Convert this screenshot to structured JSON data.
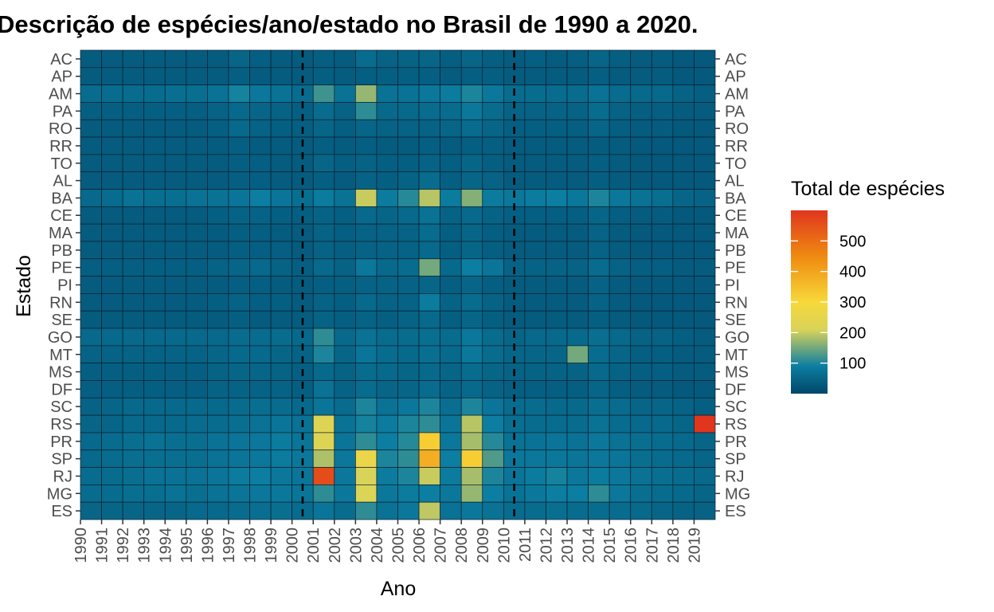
{
  "chart_data": {
    "type": "heatmap",
    "title": "Descrição de espécies/ano/estado no Brasil de 1990 a 2020.",
    "xlabel": "Ano",
    "ylabel": "Estado",
    "x": [
      "1990",
      "1991",
      "1992",
      "1993",
      "1994",
      "1995",
      "1996",
      "1997",
      "1998",
      "1999",
      "2000",
      "2001",
      "2002",
      "2003",
      "2004",
      "2005",
      "2006",
      "2007",
      "2008",
      "2009",
      "2010",
      "2011",
      "2012",
      "2013",
      "2014",
      "2015",
      "2016",
      "2017",
      "2018",
      "2019"
    ],
    "y": [
      "AC",
      "AP",
      "AM",
      "PA",
      "RO",
      "RR",
      "TO",
      "AL",
      "BA",
      "CE",
      "MA",
      "PB",
      "PE",
      "PI",
      "RN",
      "SE",
      "GO",
      "MT",
      "MS",
      "DF",
      "SC",
      "RS",
      "PR",
      "SP",
      "RJ",
      "MG",
      "ES"
    ],
    "values": [
      [
        35,
        35,
        35,
        35,
        35,
        35,
        35,
        50,
        40,
        35,
        35,
        40,
        35,
        60,
        45,
        45,
        50,
        40,
        50,
        40,
        35,
        40,
        35,
        40,
        50,
        40,
        35,
        35,
        30,
        30
      ],
      [
        35,
        35,
        35,
        35,
        35,
        35,
        35,
        40,
        35,
        35,
        35,
        40,
        35,
        40,
        40,
        40,
        40,
        35,
        40,
        40,
        35,
        35,
        35,
        35,
        40,
        35,
        35,
        35,
        30,
        30
      ],
      [
        60,
        60,
        60,
        60,
        65,
        65,
        70,
        95,
        80,
        70,
        60,
        120,
        70,
        170,
        70,
        70,
        80,
        85,
        100,
        80,
        60,
        60,
        60,
        60,
        70,
        60,
        55,
        55,
        45,
        40
      ],
      [
        40,
        40,
        40,
        40,
        40,
        40,
        45,
        55,
        50,
        45,
        40,
        60,
        45,
        110,
        55,
        55,
        60,
        60,
        80,
        60,
        45,
        45,
        45,
        45,
        60,
        45,
        40,
        40,
        35,
        35
      ],
      [
        35,
        35,
        35,
        35,
        35,
        35,
        40,
        55,
        45,
        40,
        40,
        50,
        40,
        50,
        45,
        45,
        45,
        50,
        60,
        50,
        40,
        40,
        40,
        40,
        50,
        40,
        35,
        35,
        30,
        30
      ],
      [
        35,
        35,
        35,
        35,
        35,
        35,
        35,
        40,
        35,
        35,
        35,
        40,
        35,
        40,
        35,
        35,
        40,
        35,
        40,
        40,
        35,
        35,
        35,
        35,
        35,
        35,
        30,
        30,
        30,
        30
      ],
      [
        35,
        35,
        35,
        35,
        35,
        35,
        35,
        40,
        40,
        35,
        35,
        50,
        40,
        45,
        40,
        40,
        45,
        40,
        50,
        40,
        35,
        35,
        35,
        35,
        40,
        35,
        30,
        30,
        30,
        30
      ],
      [
        35,
        35,
        35,
        35,
        35,
        35,
        35,
        40,
        40,
        35,
        35,
        40,
        35,
        45,
        40,
        45,
        60,
        40,
        50,
        45,
        35,
        35,
        35,
        35,
        40,
        35,
        30,
        30,
        30,
        30
      ],
      [
        55,
        60,
        70,
        65,
        65,
        70,
        70,
        75,
        90,
        75,
        65,
        85,
        70,
        200,
        85,
        105,
        190,
        85,
        160,
        85,
        80,
        85,
        90,
        80,
        100,
        80,
        70,
        65,
        50,
        45
      ],
      [
        35,
        35,
        35,
        35,
        35,
        35,
        40,
        45,
        45,
        40,
        40,
        45,
        40,
        55,
        50,
        55,
        70,
        45,
        55,
        45,
        40,
        40,
        40,
        40,
        50,
        40,
        35,
        35,
        30,
        30
      ],
      [
        35,
        35,
        35,
        35,
        35,
        35,
        35,
        40,
        40,
        35,
        35,
        45,
        40,
        45,
        45,
        45,
        60,
        40,
        50,
        40,
        35,
        35,
        35,
        35,
        45,
        35,
        30,
        30,
        30,
        30
      ],
      [
        35,
        35,
        35,
        35,
        35,
        35,
        35,
        40,
        40,
        40,
        35,
        45,
        40,
        45,
        45,
        45,
        55,
        40,
        50,
        40,
        35,
        35,
        35,
        35,
        45,
        35,
        30,
        30,
        30,
        30
      ],
      [
        40,
        40,
        40,
        40,
        40,
        40,
        45,
        50,
        55,
        45,
        40,
        55,
        45,
        80,
        55,
        60,
        150,
        55,
        90,
        75,
        45,
        45,
        45,
        45,
        60,
        45,
        40,
        40,
        35,
        35
      ],
      [
        35,
        35,
        35,
        35,
        35,
        35,
        35,
        40,
        40,
        35,
        35,
        40,
        40,
        45,
        45,
        45,
        50,
        40,
        50,
        40,
        35,
        35,
        35,
        35,
        45,
        35,
        30,
        30,
        30,
        30
      ],
      [
        35,
        35,
        35,
        35,
        35,
        35,
        40,
        45,
        40,
        40,
        35,
        45,
        40,
        55,
        45,
        45,
        85,
        45,
        60,
        45,
        35,
        35,
        35,
        35,
        45,
        35,
        30,
        30,
        30,
        30
      ],
      [
        35,
        35,
        35,
        35,
        35,
        35,
        35,
        40,
        35,
        35,
        35,
        45,
        40,
        45,
        40,
        45,
        55,
        40,
        50,
        40,
        35,
        35,
        35,
        35,
        40,
        35,
        30,
        30,
        30,
        30
      ],
      [
        55,
        55,
        55,
        55,
        55,
        55,
        55,
        60,
        60,
        60,
        55,
        110,
        55,
        70,
        60,
        60,
        65,
        60,
        80,
        60,
        50,
        55,
        55,
        55,
        65,
        55,
        45,
        45,
        40,
        35
      ],
      [
        45,
        45,
        45,
        45,
        45,
        45,
        50,
        55,
        55,
        50,
        45,
        100,
        50,
        75,
        60,
        55,
        65,
        55,
        80,
        60,
        50,
        50,
        50,
        150,
        60,
        50,
        40,
        40,
        35,
        35
      ],
      [
        40,
        40,
        40,
        40,
        40,
        40,
        45,
        50,
        50,
        45,
        40,
        55,
        45,
        60,
        55,
        50,
        55,
        50,
        60,
        50,
        45,
        45,
        45,
        45,
        55,
        45,
        40,
        40,
        35,
        35
      ],
      [
        40,
        40,
        40,
        40,
        40,
        40,
        45,
        45,
        45,
        45,
        40,
        70,
        45,
        60,
        50,
        50,
        60,
        45,
        55,
        45,
        40,
        40,
        40,
        40,
        50,
        40,
        35,
        35,
        30,
        30
      ],
      [
        45,
        50,
        55,
        55,
        55,
        55,
        55,
        60,
        65,
        60,
        55,
        75,
        60,
        100,
        70,
        80,
        100,
        65,
        100,
        75,
        60,
        60,
        55,
        55,
        65,
        60,
        50,
        50,
        45,
        40
      ],
      [
        50,
        50,
        55,
        55,
        55,
        60,
        60,
        65,
        70,
        75,
        70,
        225,
        70,
        95,
        85,
        100,
        110,
        75,
        190,
        90,
        65,
        60,
        60,
        60,
        70,
        60,
        55,
        55,
        50,
        600
      ],
      [
        55,
        60,
        65,
        70,
        65,
        65,
        70,
        75,
        80,
        85,
        75,
        225,
        75,
        110,
        90,
        105,
        320,
        80,
        180,
        105,
        70,
        70,
        75,
        70,
        80,
        70,
        65,
        60,
        55,
        50
      ],
      [
        55,
        60,
        65,
        65,
        65,
        65,
        70,
        75,
        80,
        85,
        80,
        185,
        80,
        260,
        100,
        110,
        380,
        90,
        320,
        130,
        80,
        80,
        80,
        75,
        80,
        75,
        65,
        60,
        55,
        50
      ],
      [
        60,
        60,
        65,
        70,
        70,
        70,
        75,
        85,
        90,
        80,
        75,
        560,
        80,
        210,
        85,
        100,
        200,
        85,
        180,
        100,
        75,
        85,
        95,
        80,
        85,
        80,
        70,
        65,
        60,
        55
      ],
      [
        60,
        60,
        65,
        65,
        70,
        65,
        70,
        75,
        80,
        80,
        75,
        110,
        80,
        220,
        80,
        85,
        90,
        80,
        170,
        90,
        70,
        80,
        90,
        90,
        110,
        80,
        65,
        60,
        55,
        50
      ],
      [
        50,
        50,
        50,
        50,
        50,
        55,
        55,
        60,
        65,
        65,
        60,
        75,
        60,
        110,
        70,
        80,
        195,
        70,
        80,
        70,
        60,
        60,
        65,
        60,
        60,
        60,
        55,
        50,
        45,
        45
      ]
    ],
    "vlines": [
      "2000",
      "2010"
    ],
    "legend": {
      "title": "Total de espécies",
      "ticks": [
        100,
        200,
        300,
        400,
        500
      ],
      "range": [
        0,
        600
      ],
      "colors": [
        "#004769",
        "#0c7ea1",
        "#d9d359",
        "#f7d83a",
        "#ef8a10",
        "#e0361e"
      ],
      "stops": [
        0,
        0.15,
        0.35,
        0.5,
        0.75,
        1.0
      ]
    }
  }
}
